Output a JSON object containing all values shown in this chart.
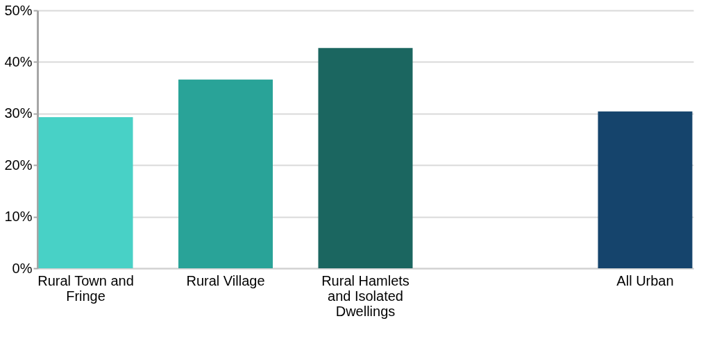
{
  "chart_data": {
    "type": "bar",
    "categories": [
      "Rural Town and Fringe",
      "Rural Village",
      "Rural Hamlets and Isolated Dwellings",
      null,
      "All Urban"
    ],
    "values": [
      29.3,
      36.6,
      42.7,
      null,
      30.4
    ],
    "colors": [
      "#48d1c6",
      "#29a398",
      "#1b6660",
      "#ffffff",
      "#15446c"
    ],
    "ylim": [
      0,
      50
    ],
    "yticks": [
      {
        "value": 0,
        "label": "0%"
      },
      {
        "value": 10,
        "label": "10%"
      },
      {
        "value": 20,
        "label": "20%"
      },
      {
        "value": 30,
        "label": "30%"
      },
      {
        "value": 40,
        "label": "40%"
      },
      {
        "value": 50,
        "label": "50%"
      }
    ],
    "grid": "y",
    "legend": false
  }
}
